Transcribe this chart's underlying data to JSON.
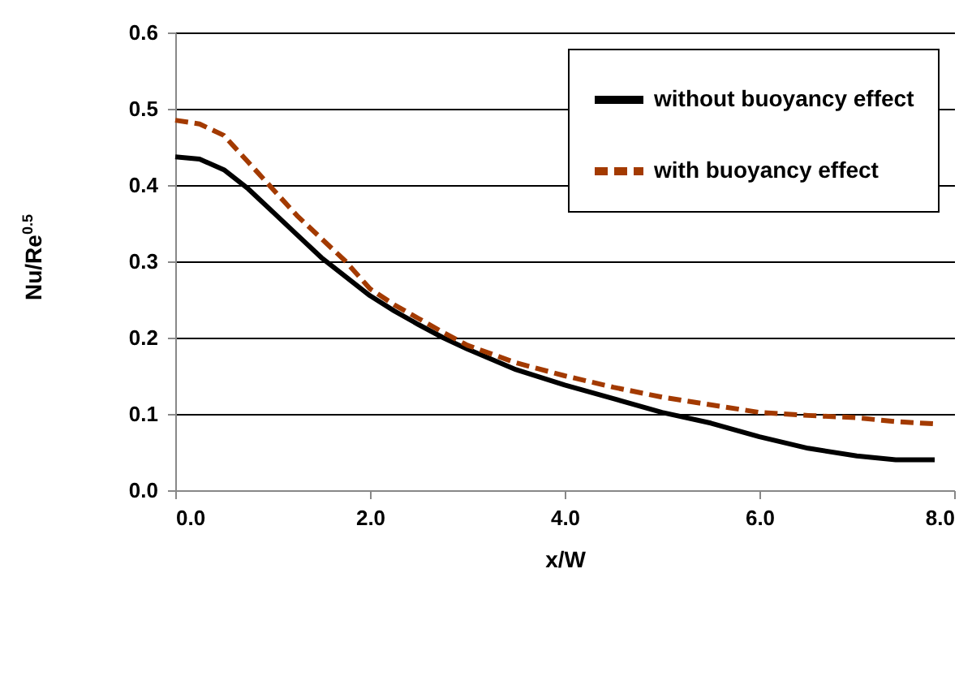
{
  "chart_data": {
    "type": "line",
    "xlabel": "x/W",
    "ylabel": "Nu/Re$^{0.5}$",
    "x": [
      0,
      0.25,
      0.5,
      0.75,
      1.0,
      1.25,
      1.5,
      1.75,
      2.0,
      2.25,
      2.5,
      2.75,
      3.0,
      3.5,
      4.0,
      4.5,
      5.0,
      5.5,
      6.0,
      6.5,
      7.0,
      7.4,
      7.8
    ],
    "series": [
      {
        "name": "without buoyancy effect",
        "color": "#000000",
        "line_style": "solid",
        "values": [
          0.437,
          0.434,
          0.42,
          0.395,
          0.365,
          0.335,
          0.305,
          0.28,
          0.255,
          0.235,
          0.217,
          0.2,
          0.185,
          0.158,
          0.138,
          0.12,
          0.102,
          0.088,
          0.07,
          0.055,
          0.045,
          0.04,
          0.04
        ]
      },
      {
        "name": "with buoyancy effect",
        "color": "#a33a00",
        "line_style": "dashed",
        "values": [
          0.485,
          0.48,
          0.465,
          0.43,
          0.395,
          0.36,
          0.33,
          0.3,
          0.264,
          0.243,
          0.225,
          0.207,
          0.19,
          0.167,
          0.15,
          0.135,
          0.122,
          0.112,
          0.102,
          0.098,
          0.095,
          0.09,
          0.087
        ]
      }
    ],
    "xlim": [
      0,
      8
    ],
    "xticks": [
      {
        "value": 0,
        "label": "0.0"
      },
      {
        "value": 2,
        "label": "2.0"
      },
      {
        "value": 4,
        "label": "4.0"
      },
      {
        "value": 6,
        "label": "6.0"
      },
      {
        "value": 8,
        "label": "8.0"
      }
    ],
    "ylim": [
      0,
      0.6
    ],
    "yticks": [
      {
        "value": 0,
        "label": "0.0"
      },
      0.1,
      0.2,
      0.3,
      0.4,
      0.5,
      0.6
    ],
    "grid": "y",
    "legend": "top right",
    "marker": "none"
  }
}
